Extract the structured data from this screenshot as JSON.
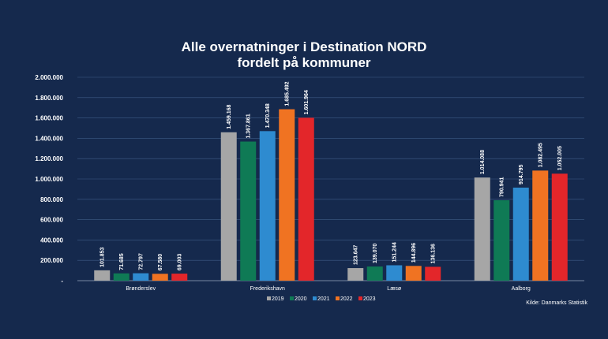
{
  "chart_data": {
    "type": "bar",
    "title_lines": [
      "Alle overnatninger i Destination NORD",
      "fordelt på kommuner"
    ],
    "categories": [
      "Brønderslev",
      "Frederikshavn",
      "Læsø",
      "Aalborg"
    ],
    "series": [
      {
        "name": "2019",
        "color": "#a6a6a6",
        "values": [
          101853,
          1459168,
          123647,
          1014088
        ],
        "labels": [
          "101.853",
          "1.459.168",
          "123.647",
          "1.014.088"
        ]
      },
      {
        "name": "2020",
        "color": "#0f7a55",
        "values": [
          71685,
          1367861,
          139070,
          790941
        ],
        "labels": [
          "71.685",
          "1.367.861",
          "139.070",
          "790.941"
        ]
      },
      {
        "name": "2021",
        "color": "#2e8bd0",
        "values": [
          72797,
          1470348,
          151244,
          914795
        ],
        "labels": [
          "72.797",
          "1.470.348",
          "151.244",
          "914.795"
        ]
      },
      {
        "name": "2022",
        "color": "#f07322",
        "values": [
          67580,
          1685492,
          144896,
          1082495
        ],
        "labels": [
          "67.580",
          "1.685.492",
          "144.896",
          "1.082.495"
        ]
      },
      {
        "name": "2023",
        "color": "#e3262a",
        "values": [
          69003,
          1601964,
          136136,
          1052005
        ],
        "labels": [
          "69.003",
          "1.601.964",
          "136.136",
          "1.052.005"
        ]
      }
    ],
    "ylim": [
      0,
      2000000
    ],
    "y_ticks": [
      0,
      200000,
      400000,
      600000,
      800000,
      1000000,
      1200000,
      1400000,
      1600000,
      1800000,
      2000000
    ],
    "y_tick_labels": [
      "-",
      "200.000",
      "400.000",
      "600.000",
      "800.000",
      "1.000.000",
      "1.200.000",
      "1.400.000",
      "1.600.000",
      "1.800.000",
      "2.000.000"
    ],
    "grid": true,
    "legend_position": "bottom",
    "source": "Kilde: Danmarks Statistik"
  }
}
